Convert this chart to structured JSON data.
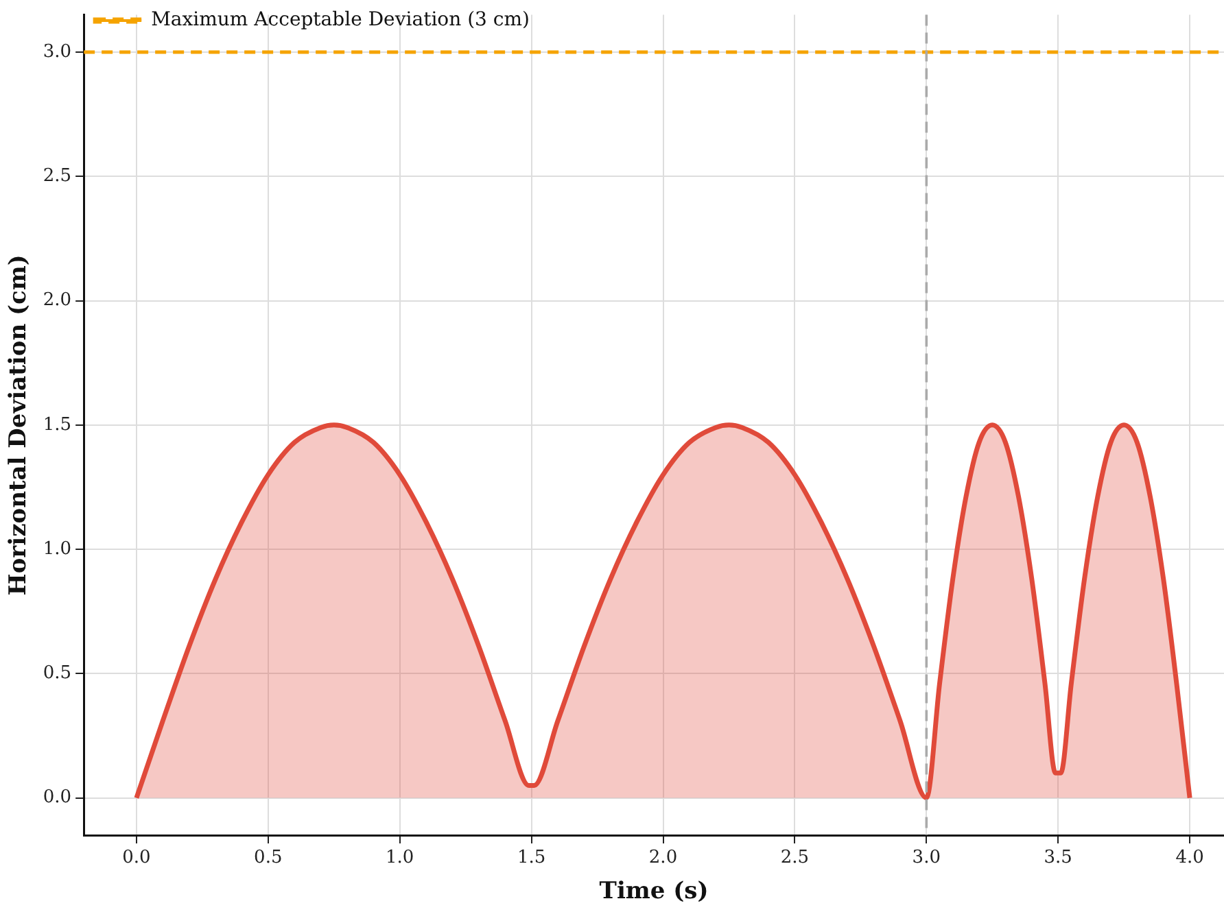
{
  "chart_data": {
    "type": "area",
    "xlabel": "Time (s)",
    "ylabel": "Horizontal Deviation (cm)",
    "series": [
      {
        "color": "#e04a3a",
        "x": [
          0,
          0.1,
          0.2,
          0.3,
          0.4,
          0.5,
          0.6,
          0.7,
          0.75,
          0.8,
          0.9,
          1.0,
          1.1,
          1.2,
          1.3,
          1.4,
          1.49,
          1.51,
          1.6,
          1.7,
          1.8,
          1.9,
          2.0,
          2.1,
          2.2,
          2.25,
          2.3,
          2.4,
          2.5,
          2.6,
          2.7,
          2.8,
          2.9,
          3.0,
          3.05,
          3.1,
          3.15,
          3.2,
          3.25,
          3.3,
          3.35,
          3.4,
          3.45,
          3.49,
          3.51,
          3.55,
          3.6,
          3.65,
          3.7,
          3.75,
          3.8,
          3.85,
          3.9,
          3.95,
          4.0
        ],
        "values": [
          0,
          0.31,
          0.61,
          0.88,
          1.11,
          1.3,
          1.43,
          1.49,
          1.5,
          1.49,
          1.43,
          1.3,
          1.11,
          0.88,
          0.61,
          0.31,
          0.05,
          0.05,
          0.31,
          0.61,
          0.88,
          1.11,
          1.3,
          1.43,
          1.49,
          1.5,
          1.49,
          1.43,
          1.3,
          1.11,
          0.88,
          0.61,
          0.31,
          0,
          0.46,
          0.88,
          1.21,
          1.43,
          1.5,
          1.43,
          1.21,
          0.88,
          0.46,
          0.1,
          0.1,
          0.46,
          0.88,
          1.21,
          1.43,
          1.5,
          1.43,
          1.21,
          0.88,
          0.46,
          0
        ]
      }
    ],
    "xlim": [
      -0.2,
      4.13
    ],
    "xticks": [
      {
        "value": 0,
        "label": "0.0"
      },
      0.5,
      {
        "value": 1,
        "label": "1.0"
      },
      1.5,
      {
        "value": 2,
        "label": "2.0"
      },
      2.5,
      {
        "value": 3,
        "label": "3.0"
      },
      3.5,
      {
        "value": 4,
        "label": "4.0"
      }
    ],
    "ylim": [
      -0.15,
      3.15
    ],
    "yticks": [
      {
        "value": 0,
        "label": "0.0"
      },
      0.5,
      {
        "value": 1,
        "label": "1.0"
      },
      1.5,
      {
        "value": 2,
        "label": "2.0"
      },
      2.5,
      {
        "value": 3,
        "label": "3.0"
      }
    ],
    "grid": true,
    "legend": "top left",
    "line_style": "solid",
    "marker": "none",
    "ref_lines": [
      {
        "axis": "y",
        "value": 3,
        "label": "Maximum Acceptable Deviation (3 cm)",
        "color": "#f5a300",
        "line_style": "dashed"
      },
      {
        "axis": "x",
        "value": 3,
        "color": "#aaaaaa",
        "line_style": "dashed"
      }
    ]
  }
}
